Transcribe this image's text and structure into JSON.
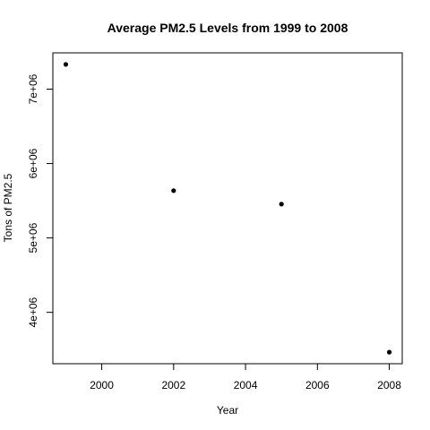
{
  "chart_data": {
    "type": "scatter",
    "title": "Average PM2.5 Levels from 1999 to 2008",
    "xlabel": "Year",
    "ylabel": "Tons of PM2.5",
    "x": [
      1999,
      2002,
      2005,
      2008
    ],
    "y": [
      7332967,
      5635780,
      5454703,
      3464206
    ],
    "xlim": [
      1999,
      2008
    ],
    "ylim": [
      3464206,
      7332967
    ],
    "x_ticks": [
      2000,
      2002,
      2004,
      2006,
      2008
    ],
    "x_tick_labels": [
      "2000",
      "2002",
      "2004",
      "2006",
      "2008"
    ],
    "y_ticks": [
      4000000,
      5000000,
      6000000,
      7000000
    ],
    "y_tick_labels": [
      "4e+06",
      "5e+06",
      "6e+06",
      "7e+06"
    ],
    "grid": false,
    "legend": "none",
    "marker_color": "#000000"
  }
}
